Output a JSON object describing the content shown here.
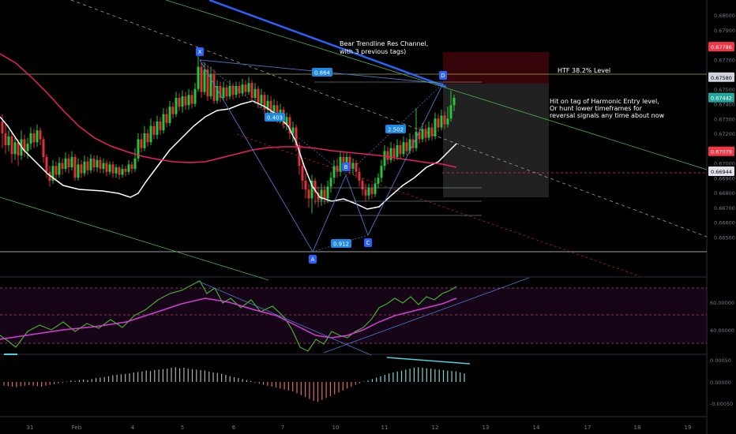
{
  "chart_data": {
    "type": "candlestick",
    "symbol_pair_price_axis": {
      "ticks": [
        "0.68000",
        "0.67900",
        "0.67800",
        "0.67700",
        "0.67600",
        "0.67500",
        "0.67400",
        "0.67300",
        "0.67200",
        "0.67100",
        "0.67000",
        "0.66900",
        "0.66800",
        "0.66700",
        "0.66600",
        "0.66500"
      ],
      "ylim": [
        0.6649,
        0.6803
      ],
      "labels": [
        {
          "name": "htf-level-price",
          "value": 0.67786,
          "text": "0.67786",
          "color": "#f23645"
        },
        {
          "name": "h-line-price",
          "value": 0.6758,
          "text": "0.67580",
          "color": "#d1d4dc"
        },
        {
          "name": "last-price",
          "value": 0.67442,
          "text": "0.67442",
          "color": "#26a69a"
        },
        {
          "name": "ma-price",
          "value": 0.67079,
          "text": "0.67079",
          "color": "#f23645"
        },
        {
          "name": "low-price",
          "value": 0.66944,
          "text": "0.66944",
          "color": "#e0e3eb"
        }
      ]
    },
    "x_axis_ticks": [
      "31",
      "Feb",
      "4",
      "5",
      "6",
      "7",
      "10",
      "11",
      "12",
      "13",
      "14",
      "17",
      "18",
      "19"
    ],
    "harmonic_points": {
      "X": 0.6775,
      "A": 0.6665,
      "B": 0.6708,
      "C": 0.6675,
      "D": 0.6762
    },
    "harmonic_ratios": [
      "0.864",
      "0.403",
      "2.502",
      "0.912"
    ],
    "annotations": [
      "Bear Trendline Res Channel,",
      "with 3 previous tags)",
      "HTF 38.2% Level",
      "Hit on tag of Harmonic Entry level,",
      "Or hunt lower timeframes for",
      "reversal signals any time about now"
    ],
    "oscillator": {
      "ticks": [
        "60.00000",
        "40.00000"
      ],
      "ylim": [
        20,
        80
      ]
    },
    "histogram": {
      "ticks": [
        "0.00050",
        "0.00000",
        "-0.00050"
      ],
      "ylim": [
        -0.0007,
        0.0006
      ]
    },
    "grid": false
  }
}
